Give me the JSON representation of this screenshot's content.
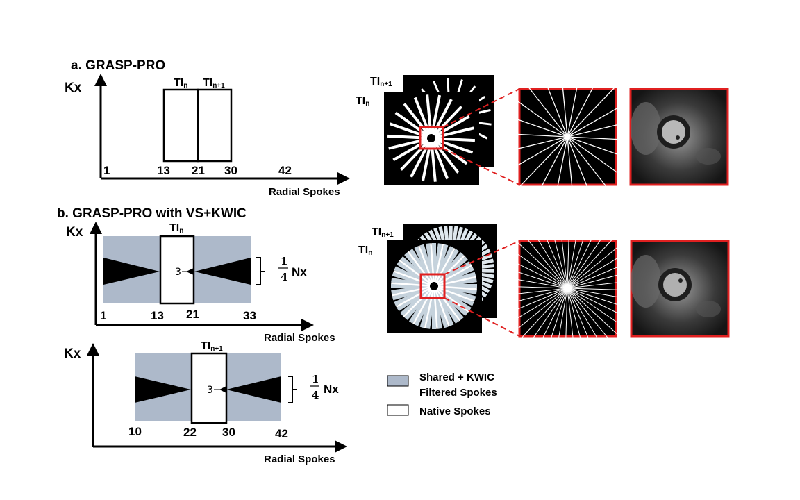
{
  "colors": {
    "shared": "#adb9ca",
    "native": "#ffffff",
    "highlight": "#e02020",
    "axis": "#000000"
  },
  "panel_a": {
    "title": "a. GRASP-PRO",
    "ylabel": "Kx",
    "xlabel": "Radial Spokes",
    "ticks": [
      "1",
      "13",
      "21",
      "30",
      "42"
    ],
    "ti_n": "TI",
    "ti_n_sub": "n",
    "ti_n1": "TI",
    "ti_n1_sub": "n+1"
  },
  "panel_b1": {
    "title": "b. GRASP-PRO with VS+KWIC",
    "ylabel": "Kx",
    "xlabel": "Radial Spokes",
    "ticks": [
      "1",
      "13",
      "21",
      "33"
    ],
    "ti": "TI",
    "ti_sub": "n",
    "center_label": "3",
    "frac_num": "1",
    "frac_den": "4",
    "nx": "Nx"
  },
  "panel_b2": {
    "ylabel": "Kx",
    "xlabel": "Radial Spokes",
    "ticks": [
      "10",
      "22",
      "30",
      "42"
    ],
    "ti": "TI",
    "ti_sub": "n+1",
    "center_label": "3",
    "frac_num": "1",
    "frac_den": "4",
    "nx": "Nx"
  },
  "images_a": {
    "ti_n1": "TI",
    "ti_n1_sub": "n+1",
    "ti_n": "TI",
    "ti_n_sub": "n"
  },
  "images_b": {
    "ti_n1": "TI",
    "ti_n1_sub": "n+1",
    "ti_n": "TI",
    "ti_n_sub": "n"
  },
  "legend": {
    "shared_line1": "Shared + KWIC",
    "shared_line2": "Filtered Spokes",
    "native": "Native Spokes"
  }
}
